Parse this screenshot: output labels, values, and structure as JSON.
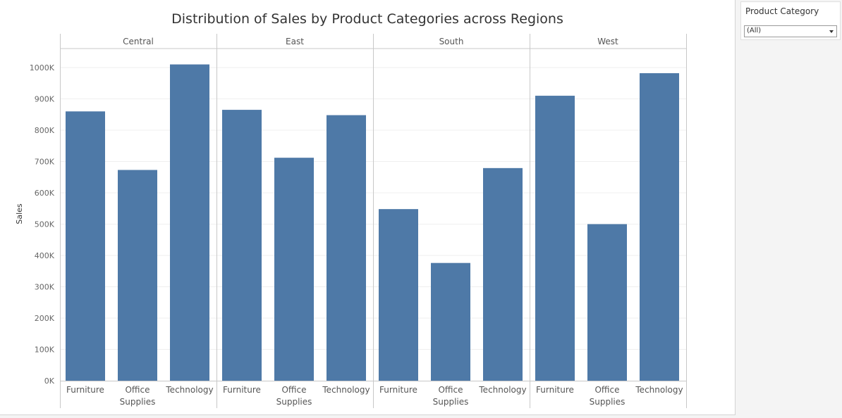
{
  "chart_data": {
    "type": "bar",
    "title": "Distribution of Sales by Product Categories across Regions",
    "xlabel": "",
    "ylabel": "Sales",
    "ylim": [
      0,
      1050000
    ],
    "yticks": [
      0,
      100000,
      200000,
      300000,
      400000,
      500000,
      600000,
      700000,
      800000,
      900000,
      1000000
    ],
    "ytick_labels": [
      "0K",
      "100K",
      "200K",
      "300K",
      "400K",
      "500K",
      "600K",
      "700K",
      "800K",
      "900K",
      "1000K"
    ],
    "grid": true,
    "bar_color": "#4e79a7",
    "categories": [
      "Furniture",
      "Office Supplies",
      "Technology"
    ],
    "category_labels": [
      [
        "Furniture"
      ],
      [
        "Office",
        "Supplies"
      ],
      [
        "Technology"
      ]
    ],
    "panels": [
      {
        "region": "Central",
        "values": [
          860000,
          673000,
          1010000
        ]
      },
      {
        "region": "East",
        "values": [
          865000,
          712000,
          848000
        ]
      },
      {
        "region": "South",
        "values": [
          548000,
          376000,
          679000
        ]
      },
      {
        "region": "West",
        "values": [
          910000,
          500000,
          982000
        ]
      }
    ]
  },
  "filter": {
    "title": "Product Category",
    "value": "(All)"
  }
}
